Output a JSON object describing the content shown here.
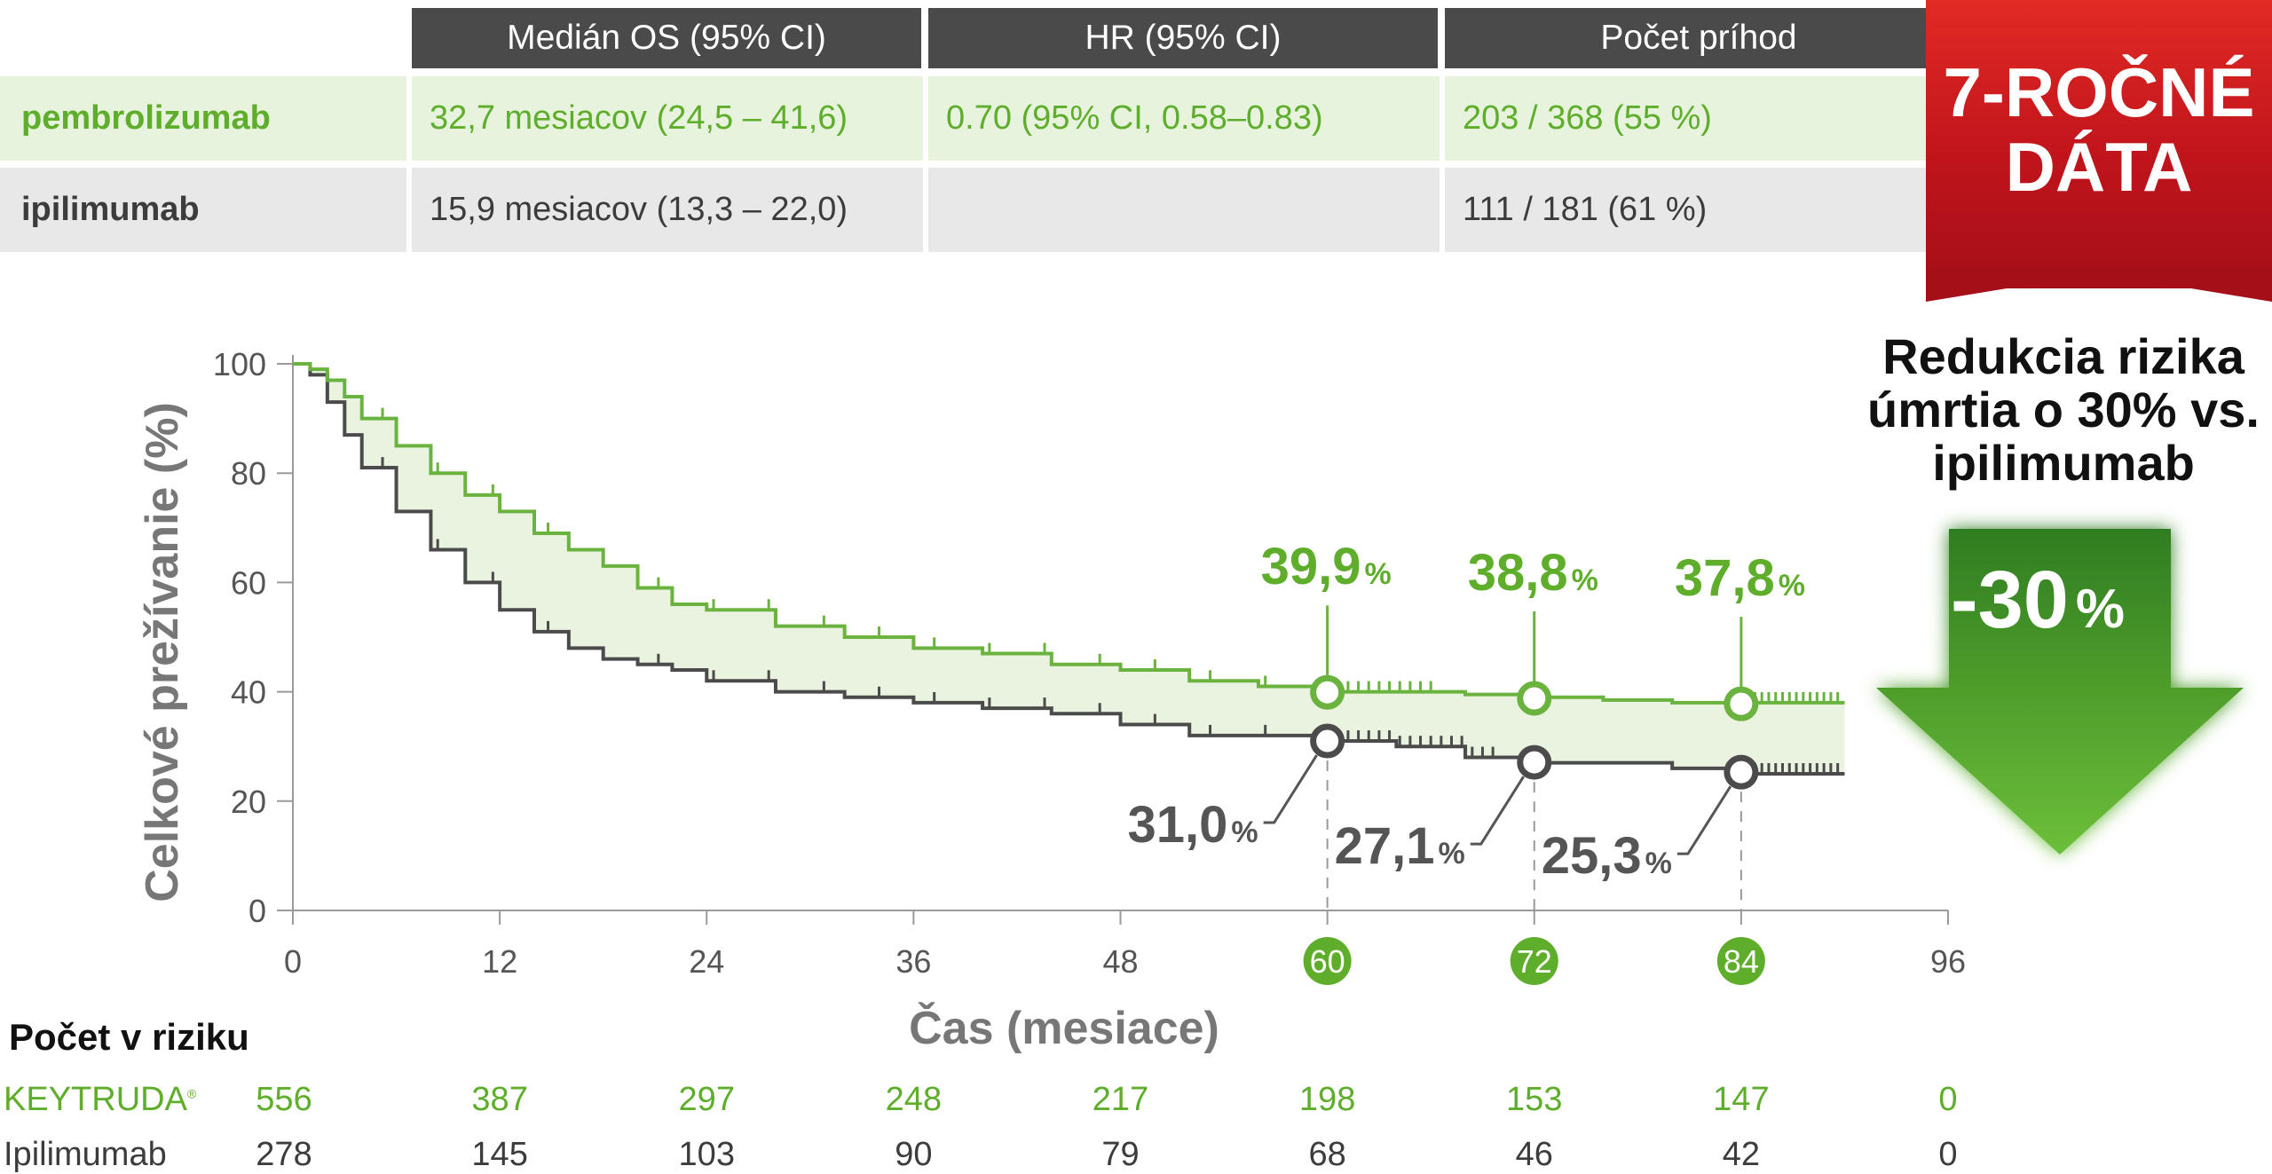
{
  "table": {
    "headers": [
      "Medián OS (95% CI)",
      "HR (95% CI)",
      "Počet príhod"
    ],
    "rows": [
      {
        "name": "pembrolizumab",
        "median_os": "32,7 mesiacov (24,5 – 41,6)",
        "hr": "0.70 (95% CI, 0.58–0.83)",
        "events": "203 / 368 (55 %)"
      },
      {
        "name": "ipilimumab",
        "median_os": "15,9 mesiacov (13,3 – 22,0)",
        "hr": "",
        "events": "111 / 181 (61 %)"
      }
    ]
  },
  "badge": {
    "line1": "7-ROČNÉ",
    "line2": "DÁTA"
  },
  "claim": {
    "line1": "Redukcia rizika",
    "line2": "úmrtia o 30% vs.",
    "line3": "ipilimumab"
  },
  "reduction": {
    "value": "-30",
    "unit": "%"
  },
  "colors": {
    "pembro": "#6ab33e",
    "ipi": "#4b4b4b",
    "fill": "#e9f3df",
    "highlight": "#5eae2c",
    "header": "#4a4a4a",
    "badge": "#d11d23",
    "arrow": "#4f9e2c"
  },
  "chart_data": {
    "type": "line",
    "title": "",
    "xlabel": "Čas (mesiace)",
    "ylabel": "Celkové prežívanie (%)",
    "xlim": [
      0,
      96
    ],
    "ylim": [
      0,
      100
    ],
    "x_ticks": [
      0,
      12,
      24,
      36,
      48,
      60,
      72,
      84,
      96
    ],
    "y_ticks": [
      0,
      20,
      40,
      60,
      80,
      100
    ],
    "highlighted_ticks": [
      60,
      72,
      84
    ],
    "series": [
      {
        "name": "pembrolizumab",
        "x": [
          0,
          1,
          2,
          3,
          4,
          6,
          8,
          10,
          12,
          14,
          16,
          18,
          20,
          22,
          24,
          28,
          32,
          36,
          40,
          44,
          48,
          52,
          56,
          60,
          64,
          68,
          72,
          76,
          80,
          84,
          88,
          90
        ],
        "y": [
          100,
          99,
          97,
          94,
          90,
          85,
          80,
          76,
          73,
          69,
          66,
          63,
          59,
          56,
          55,
          52,
          50,
          48,
          47,
          45,
          44,
          42,
          41,
          40,
          40,
          39.5,
          39,
          38.5,
          38,
          38,
          38,
          38
        ]
      },
      {
        "name": "ipilimumab",
        "x": [
          0,
          1,
          2,
          3,
          4,
          6,
          8,
          10,
          12,
          14,
          16,
          18,
          20,
          22,
          24,
          28,
          32,
          36,
          40,
          44,
          48,
          52,
          56,
          60,
          64,
          68,
          72,
          76,
          80,
          84,
          88,
          90
        ],
        "y": [
          100,
          98,
          93,
          87,
          81,
          73,
          66,
          60,
          55,
          51,
          48,
          46,
          45,
          44,
          42,
          40,
          39,
          38,
          37,
          36,
          34,
          32,
          32,
          31,
          30,
          28,
          27,
          27,
          26,
          25,
          25,
          25
        ]
      }
    ],
    "annotations": [
      {
        "series": "pembrolizumab",
        "x": 60,
        "y": 39.9,
        "label": "39,9",
        "unit": "%"
      },
      {
        "series": "pembrolizumab",
        "x": 72,
        "y": 38.8,
        "label": "38,8",
        "unit": "%"
      },
      {
        "series": "pembrolizumab",
        "x": 84,
        "y": 37.8,
        "label": "37,8",
        "unit": "%"
      },
      {
        "series": "ipilimumab",
        "x": 60,
        "y": 31.0,
        "label": "31,0",
        "unit": "%"
      },
      {
        "series": "ipilimumab",
        "x": 72,
        "y": 27.1,
        "label": "27,1",
        "unit": "%"
      },
      {
        "series": "ipilimumab",
        "x": 84,
        "y": 25.3,
        "label": "25,3",
        "unit": "%"
      }
    ]
  },
  "risk_table": {
    "title": "Počet v riziku",
    "times": [
      0,
      12,
      24,
      36,
      48,
      60,
      72,
      84,
      96
    ],
    "rows": [
      {
        "label": "KEYTRUDA",
        "mark": "®",
        "values": [
          "556",
          "387",
          "297",
          "248",
          "217",
          "198",
          "153",
          "147",
          "0"
        ]
      },
      {
        "label": "Ipilimumab",
        "mark": "",
        "values": [
          "278",
          "145",
          "103",
          "90",
          "79",
          "68",
          "46",
          "42",
          "0"
        ]
      }
    ]
  }
}
